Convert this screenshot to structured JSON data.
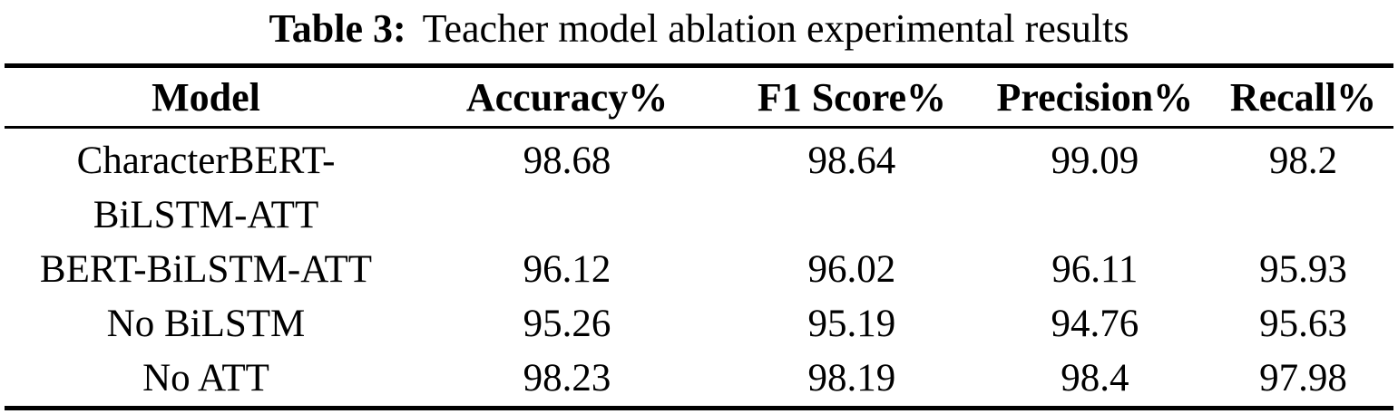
{
  "caption": {
    "label": "Table 3:",
    "text": "Teacher model ablation experimental results"
  },
  "table": {
    "columns": {
      "model": "Model",
      "accuracy": "Accuracy%",
      "f1": "F1 Score%",
      "precision": "Precision%",
      "recall": "Recall%"
    },
    "rows": [
      {
        "model": "CharacterBERT-\nBiLSTM-ATT",
        "accuracy": "98.68",
        "f1": "98.64",
        "precision": "99.09",
        "recall": "98.2"
      },
      {
        "model": "BERT-BiLSTM-ATT",
        "accuracy": "96.12",
        "f1": "96.02",
        "precision": "96.11",
        "recall": "95.93"
      },
      {
        "model": "No BiLSTM",
        "accuracy": "95.26",
        "f1": "95.19",
        "precision": "94.76",
        "recall": "95.63"
      },
      {
        "model": "No ATT",
        "accuracy": "98.23",
        "f1": "98.19",
        "precision": "98.4",
        "recall": "97.98"
      }
    ]
  },
  "colors": {
    "background": "#ffffff",
    "text": "#000000",
    "rule": "#000000"
  }
}
